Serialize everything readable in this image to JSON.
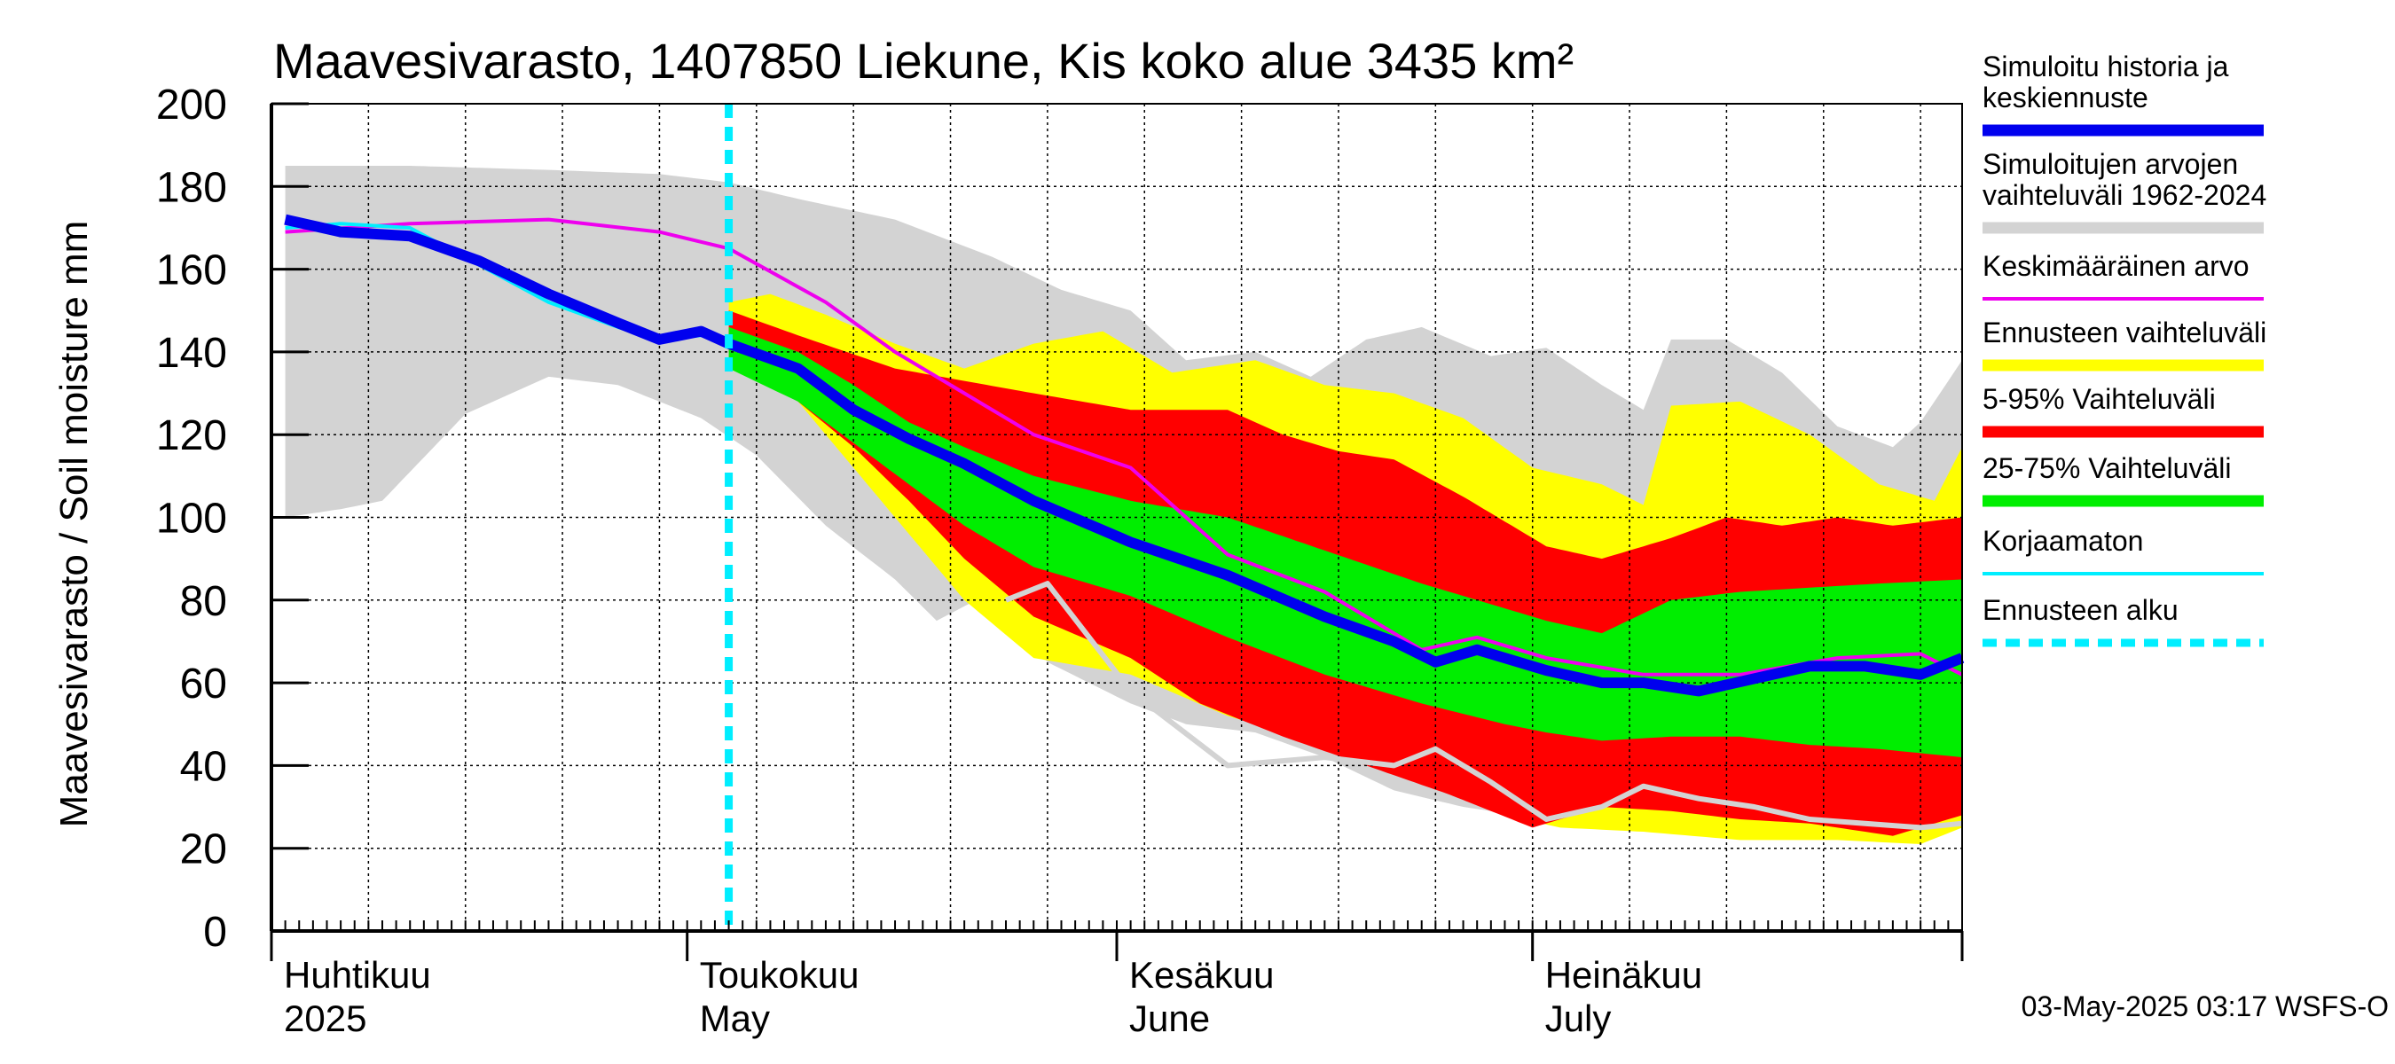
{
  "chart_data": {
    "type": "area",
    "title": "Maavesivarasto, 1407850 Liekune, Kis koko alue 3435 km²",
    "ylabel": "Maavesivarasto / Soil moisture   mm",
    "ylim": [
      0,
      200
    ],
    "y_ticks": [
      0,
      20,
      40,
      60,
      80,
      100,
      120,
      140,
      160,
      180,
      200
    ],
    "x_range": [
      "2025-04-01",
      "2025-07-31"
    ],
    "forecast_start": "2025-05-03",
    "month_labels": [
      {
        "date": "2025-04-01",
        "line1": "Huhtikuu",
        "line2": "2025"
      },
      {
        "date": "2025-05-01",
        "line1": "Toukokuu",
        "line2": "May"
      },
      {
        "date": "2025-06-01",
        "line1": "Kesäkuu",
        "line2": "June"
      },
      {
        "date": "2025-07-01",
        "line1": "Heinäkuu",
        "line2": "July"
      }
    ],
    "grid": true,
    "legend_position": "right",
    "timestamp": "03-May-2025 03:17 WSFS-O",
    "colors": {
      "history_range": "#d3d3d3",
      "forecast_range": "#ffff00",
      "p5_95": "#ff0000",
      "p25_75": "#00ee00",
      "mean": "#ee00ee",
      "simulated": "#0000ee",
      "uncorrected": "#00eeff",
      "forecast_start": "#00eeff",
      "grey_line": "#d3d3d3"
    },
    "series": [
      {
        "key": "hist_max",
        "x": [
          "2025-04-01",
          "2025-04-10",
          "2025-04-20",
          "2025-04-28",
          "2025-05-03",
          "2025-05-08",
          "2025-05-15",
          "2025-05-22",
          "2025-05-27",
          "2025-06-01",
          "2025-06-05",
          "2025-06-10",
          "2025-06-14",
          "2025-06-18",
          "2025-06-22",
          "2025-06-27",
          "2025-07-01",
          "2025-07-05",
          "2025-07-08",
          "2025-07-10",
          "2025-07-14",
          "2025-07-18",
          "2025-07-22",
          "2025-07-26",
          "2025-07-28",
          "2025-07-31"
        ],
        "y": [
          185,
          185,
          184,
          183,
          181,
          177,
          172,
          163,
          155,
          150,
          138,
          140,
          134,
          143,
          146,
          139,
          141,
          132,
          126,
          143,
          143,
          135,
          122,
          117,
          123,
          138
        ]
      },
      {
        "key": "hist_min",
        "x": [
          "2025-04-01",
          "2025-04-05",
          "2025-04-08",
          "2025-04-14",
          "2025-04-20",
          "2025-04-25",
          "2025-05-01",
          "2025-05-05",
          "2025-05-10",
          "2025-05-15",
          "2025-05-18",
          "2025-05-22",
          "2025-05-26",
          "2025-06-01",
          "2025-06-05",
          "2025-06-10",
          "2025-06-15",
          "2025-06-20",
          "2025-06-25",
          "2025-07-01",
          "2025-07-05",
          "2025-07-10",
          "2025-07-15",
          "2025-07-20",
          "2025-07-25",
          "2025-07-31"
        ],
        "y": [
          100,
          102,
          104,
          125,
          134,
          132,
          124,
          115,
          98,
          85,
          75,
          82,
          65,
          55,
          50,
          48,
          42,
          34,
          30,
          27,
          28,
          28,
          27,
          25,
          24,
          27
        ]
      },
      {
        "key": "forecast_max",
        "x": [
          "2025-05-03",
          "2025-05-06",
          "2025-05-10",
          "2025-05-15",
          "2025-05-20",
          "2025-05-25",
          "2025-05-30",
          "2025-06-04",
          "2025-06-10",
          "2025-06-15",
          "2025-06-20",
          "2025-06-25",
          "2025-06-30",
          "2025-07-05",
          "2025-07-08",
          "2025-07-10",
          "2025-07-15",
          "2025-07-20",
          "2025-07-25",
          "2025-07-29",
          "2025-07-31"
        ],
        "y": [
          152,
          154,
          149,
          142,
          136,
          142,
          145,
          135,
          138,
          132,
          130,
          124,
          112,
          108,
          103,
          127,
          128,
          120,
          108,
          104,
          117
        ]
      },
      {
        "key": "forecast_min",
        "x": [
          "2025-05-03",
          "2025-05-08",
          "2025-05-12",
          "2025-05-16",
          "2025-05-20",
          "2025-05-25",
          "2025-06-01",
          "2025-06-08",
          "2025-06-15",
          "2025-06-22",
          "2025-06-28",
          "2025-07-02",
          "2025-07-08",
          "2025-07-15",
          "2025-07-22",
          "2025-07-28",
          "2025-07-31"
        ],
        "y": [
          140,
          128,
          112,
          96,
          80,
          66,
          62,
          52,
          45,
          36,
          28,
          25,
          24,
          22,
          22,
          21,
          25
        ]
      },
      {
        "key": "p95",
        "x": [
          "2025-05-03",
          "2025-05-08",
          "2025-05-15",
          "2025-05-20",
          "2025-05-25",
          "2025-06-01",
          "2025-06-08",
          "2025-06-12",
          "2025-06-16",
          "2025-06-20",
          "2025-06-25",
          "2025-07-01",
          "2025-07-05",
          "2025-07-10",
          "2025-07-14",
          "2025-07-18",
          "2025-07-22",
          "2025-07-26",
          "2025-07-31"
        ],
        "y": [
          150,
          144,
          136,
          133,
          130,
          126,
          126,
          120,
          116,
          114,
          105,
          93,
          90,
          95,
          100,
          98,
          100,
          98,
          100
        ]
      },
      {
        "key": "p5",
        "x": [
          "2025-05-03",
          "2025-05-08",
          "2025-05-12",
          "2025-05-16",
          "2025-05-20",
          "2025-05-25",
          "2025-06-01",
          "2025-06-06",
          "2025-06-12",
          "2025-06-18",
          "2025-06-24",
          "2025-06-30",
          "2025-07-05",
          "2025-07-10",
          "2025-07-15",
          "2025-07-20",
          "2025-07-26",
          "2025-07-31"
        ],
        "y": [
          140,
          128,
          117,
          104,
          90,
          76,
          66,
          55,
          47,
          40,
          33,
          25,
          30,
          29,
          27,
          26,
          23,
          28
        ]
      },
      {
        "key": "p75",
        "x": [
          "2025-05-03",
          "2025-05-08",
          "2025-05-12",
          "2025-05-16",
          "2025-05-20",
          "2025-05-25",
          "2025-06-01",
          "2025-06-08",
          "2025-06-15",
          "2025-06-22",
          "2025-06-28",
          "2025-07-01",
          "2025-07-05",
          "2025-07-10",
          "2025-07-15",
          "2025-07-20",
          "2025-07-25",
          "2025-07-31"
        ],
        "y": [
          146,
          140,
          132,
          123,
          117,
          110,
          104,
          100,
          92,
          84,
          78,
          75,
          72,
          80,
          82,
          83,
          84,
          85
        ]
      },
      {
        "key": "p25",
        "x": [
          "2025-05-03",
          "2025-05-08",
          "2025-05-12",
          "2025-05-16",
          "2025-05-20",
          "2025-05-25",
          "2025-06-01",
          "2025-06-08",
          "2025-06-15",
          "2025-06-22",
          "2025-06-28",
          "2025-07-01",
          "2025-07-05",
          "2025-07-10",
          "2025-07-15",
          "2025-07-20",
          "2025-07-25",
          "2025-07-31"
        ],
        "y": [
          136,
          128,
          118,
          108,
          98,
          88,
          81,
          71,
          62,
          55,
          50,
          48,
          46,
          47,
          47,
          45,
          44,
          42
        ]
      },
      {
        "key": "mean",
        "x": [
          "2025-04-01",
          "2025-04-10",
          "2025-04-20",
          "2025-04-28",
          "2025-05-03",
          "2025-05-10",
          "2025-05-15",
          "2025-05-20",
          "2025-05-25",
          "2025-06-01",
          "2025-06-08",
          "2025-06-15",
          "2025-06-22",
          "2025-06-26",
          "2025-07-01",
          "2025-07-08",
          "2025-07-15",
          "2025-07-22",
          "2025-07-28",
          "2025-07-31"
        ],
        "y": [
          169,
          171,
          172,
          169,
          165,
          152,
          140,
          130,
          120,
          112,
          91,
          82,
          68,
          71,
          66,
          62,
          62,
          66,
          67,
          62
        ]
      },
      {
        "key": "simulated",
        "x": [
          "2025-04-01",
          "2025-04-05",
          "2025-04-10",
          "2025-04-15",
          "2025-04-20",
          "2025-04-25",
          "2025-04-28",
          "2025-05-01",
          "2025-05-03",
          "2025-05-08",
          "2025-05-12",
          "2025-05-16",
          "2025-05-20",
          "2025-05-25",
          "2025-06-01",
          "2025-06-08",
          "2025-06-15",
          "2025-06-20",
          "2025-06-23",
          "2025-06-26",
          "2025-07-01",
          "2025-07-05",
          "2025-07-08",
          "2025-07-12",
          "2025-07-16",
          "2025-07-20",
          "2025-07-24",
          "2025-07-28",
          "2025-07-31"
        ],
        "y": [
          172,
          169,
          168,
          162,
          154,
          147,
          143,
          145,
          142,
          136,
          126,
          119,
          113,
          104,
          94,
          86,
          76,
          70,
          65,
          68,
          63,
          60,
          60,
          58,
          61,
          64,
          64,
          62,
          66
        ]
      },
      {
        "key": "uncorrected",
        "x": [
          "2025-04-01",
          "2025-04-05",
          "2025-04-10",
          "2025-04-15",
          "2025-04-20",
          "2025-04-25",
          "2025-04-28",
          "2025-05-01",
          "2025-05-03"
        ],
        "y": [
          170,
          171,
          170,
          161,
          152,
          146,
          143,
          144,
          143
        ]
      },
      {
        "key": "grey_line",
        "x": [
          "2025-05-23",
          "2025-05-26",
          "2025-06-01",
          "2025-06-08",
          "2025-06-15",
          "2025-06-20",
          "2025-06-23",
          "2025-06-27",
          "2025-07-01",
          "2025-07-05",
          "2025-07-08",
          "2025-07-12",
          "2025-07-16",
          "2025-07-20",
          "2025-07-24",
          "2025-07-28",
          "2025-07-31"
        ],
        "y": [
          80,
          84,
          58,
          40,
          42,
          40,
          44,
          36,
          27,
          30,
          35,
          32,
          30,
          27,
          26,
          25,
          26
        ]
      }
    ]
  },
  "legend": {
    "items": [
      {
        "label_lines": [
          "Simuloitu historia ja",
          "keskiennuste"
        ],
        "color": "#0000ee",
        "style": "thick"
      },
      {
        "label_lines": [
          "Simuloitujen arvojen",
          "vaihteluväli 1962-2024"
        ],
        "color": "#d3d3d3",
        "style": "thick"
      },
      {
        "label_lines": [
          "Keskimääräinen arvo"
        ],
        "color": "#ee00ee",
        "style": "thin"
      },
      {
        "label_lines": [
          "Ennusteen vaihteluväli"
        ],
        "color": "#ffff00",
        "style": "thick"
      },
      {
        "label_lines": [
          "5-95% Vaihteluväli"
        ],
        "color": "#ff0000",
        "style": "thick"
      },
      {
        "label_lines": [
          "25-75% Vaihteluväli"
        ],
        "color": "#00ee00",
        "style": "thick"
      },
      {
        "label_lines": [
          "Korjaamaton"
        ],
        "color": "#00eeff",
        "style": "thin"
      },
      {
        "label_lines": [
          "Ennusteen alku"
        ],
        "color": "#00eeff",
        "style": "dashed"
      }
    ]
  }
}
